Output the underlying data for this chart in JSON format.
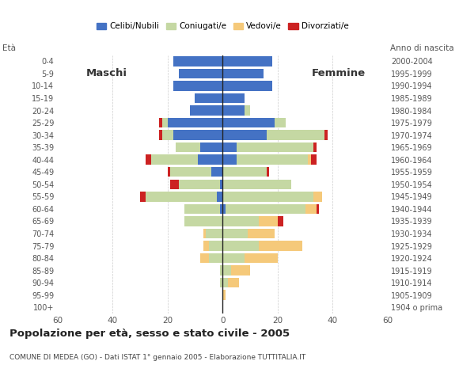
{
  "age_groups": [
    "100+",
    "95-99",
    "90-94",
    "85-89",
    "80-84",
    "75-79",
    "70-74",
    "65-69",
    "60-64",
    "55-59",
    "50-54",
    "45-49",
    "40-44",
    "35-39",
    "30-34",
    "25-29",
    "20-24",
    "15-19",
    "10-14",
    "5-9",
    "0-4"
  ],
  "birth_years": [
    "1904 o prima",
    "1905-1909",
    "1910-1914",
    "1915-1919",
    "1920-1924",
    "1925-1929",
    "1930-1934",
    "1935-1939",
    "1940-1944",
    "1945-1949",
    "1950-1954",
    "1955-1959",
    "1960-1964",
    "1965-1969",
    "1970-1974",
    "1975-1979",
    "1980-1984",
    "1985-1989",
    "1990-1994",
    "1995-1999",
    "2000-2004"
  ],
  "male_celibi": [
    0,
    0,
    0,
    0,
    0,
    0,
    0,
    0,
    1,
    2,
    1,
    4,
    9,
    8,
    18,
    20,
    12,
    10,
    18,
    16,
    18
  ],
  "male_coniugati": [
    0,
    0,
    1,
    1,
    5,
    5,
    6,
    14,
    13,
    26,
    15,
    15,
    17,
    9,
    4,
    2,
    0,
    0,
    0,
    0,
    0
  ],
  "male_vedovi": [
    0,
    0,
    0,
    0,
    3,
    2,
    1,
    0,
    0,
    0,
    0,
    0,
    0,
    0,
    0,
    0,
    0,
    0,
    0,
    0,
    0
  ],
  "male_divorziati": [
    0,
    0,
    0,
    0,
    0,
    0,
    0,
    0,
    0,
    2,
    3,
    1,
    2,
    0,
    1,
    1,
    0,
    0,
    0,
    0,
    0
  ],
  "female_nubili": [
    0,
    0,
    0,
    0,
    0,
    0,
    0,
    0,
    1,
    0,
    0,
    0,
    5,
    5,
    16,
    19,
    8,
    8,
    18,
    15,
    18
  ],
  "female_coniugate": [
    0,
    0,
    2,
    3,
    8,
    13,
    9,
    13,
    29,
    33,
    25,
    16,
    26,
    28,
    21,
    4,
    2,
    0,
    0,
    0,
    0
  ],
  "female_vedove": [
    0,
    1,
    4,
    7,
    12,
    16,
    10,
    7,
    4,
    3,
    0,
    0,
    1,
    0,
    0,
    0,
    0,
    0,
    0,
    0,
    0
  ],
  "female_divorziate": [
    0,
    0,
    0,
    0,
    0,
    0,
    0,
    2,
    1,
    0,
    0,
    1,
    2,
    1,
    1,
    0,
    0,
    0,
    0,
    0,
    0
  ],
  "color_celibi": "#4472c4",
  "color_coniugati": "#c5d8a3",
  "color_vedovi": "#f5c97a",
  "color_divorziati": "#cc2222",
  "xlim": 60,
  "title": "Popolazione per eta, sesso e stato civile - 2005",
  "footer": "COMUNE DI MEDEA (GO) - Dati ISTAT 1° gennaio 2005 - Elaborazione TUTTITALIA.IT",
  "legend_labels": [
    "Celibi/Nubili",
    "Coniugati/e",
    "Vedovi/e",
    "Divorziati/e"
  ],
  "background_color": "#ffffff",
  "grid_color": "#cccccc"
}
